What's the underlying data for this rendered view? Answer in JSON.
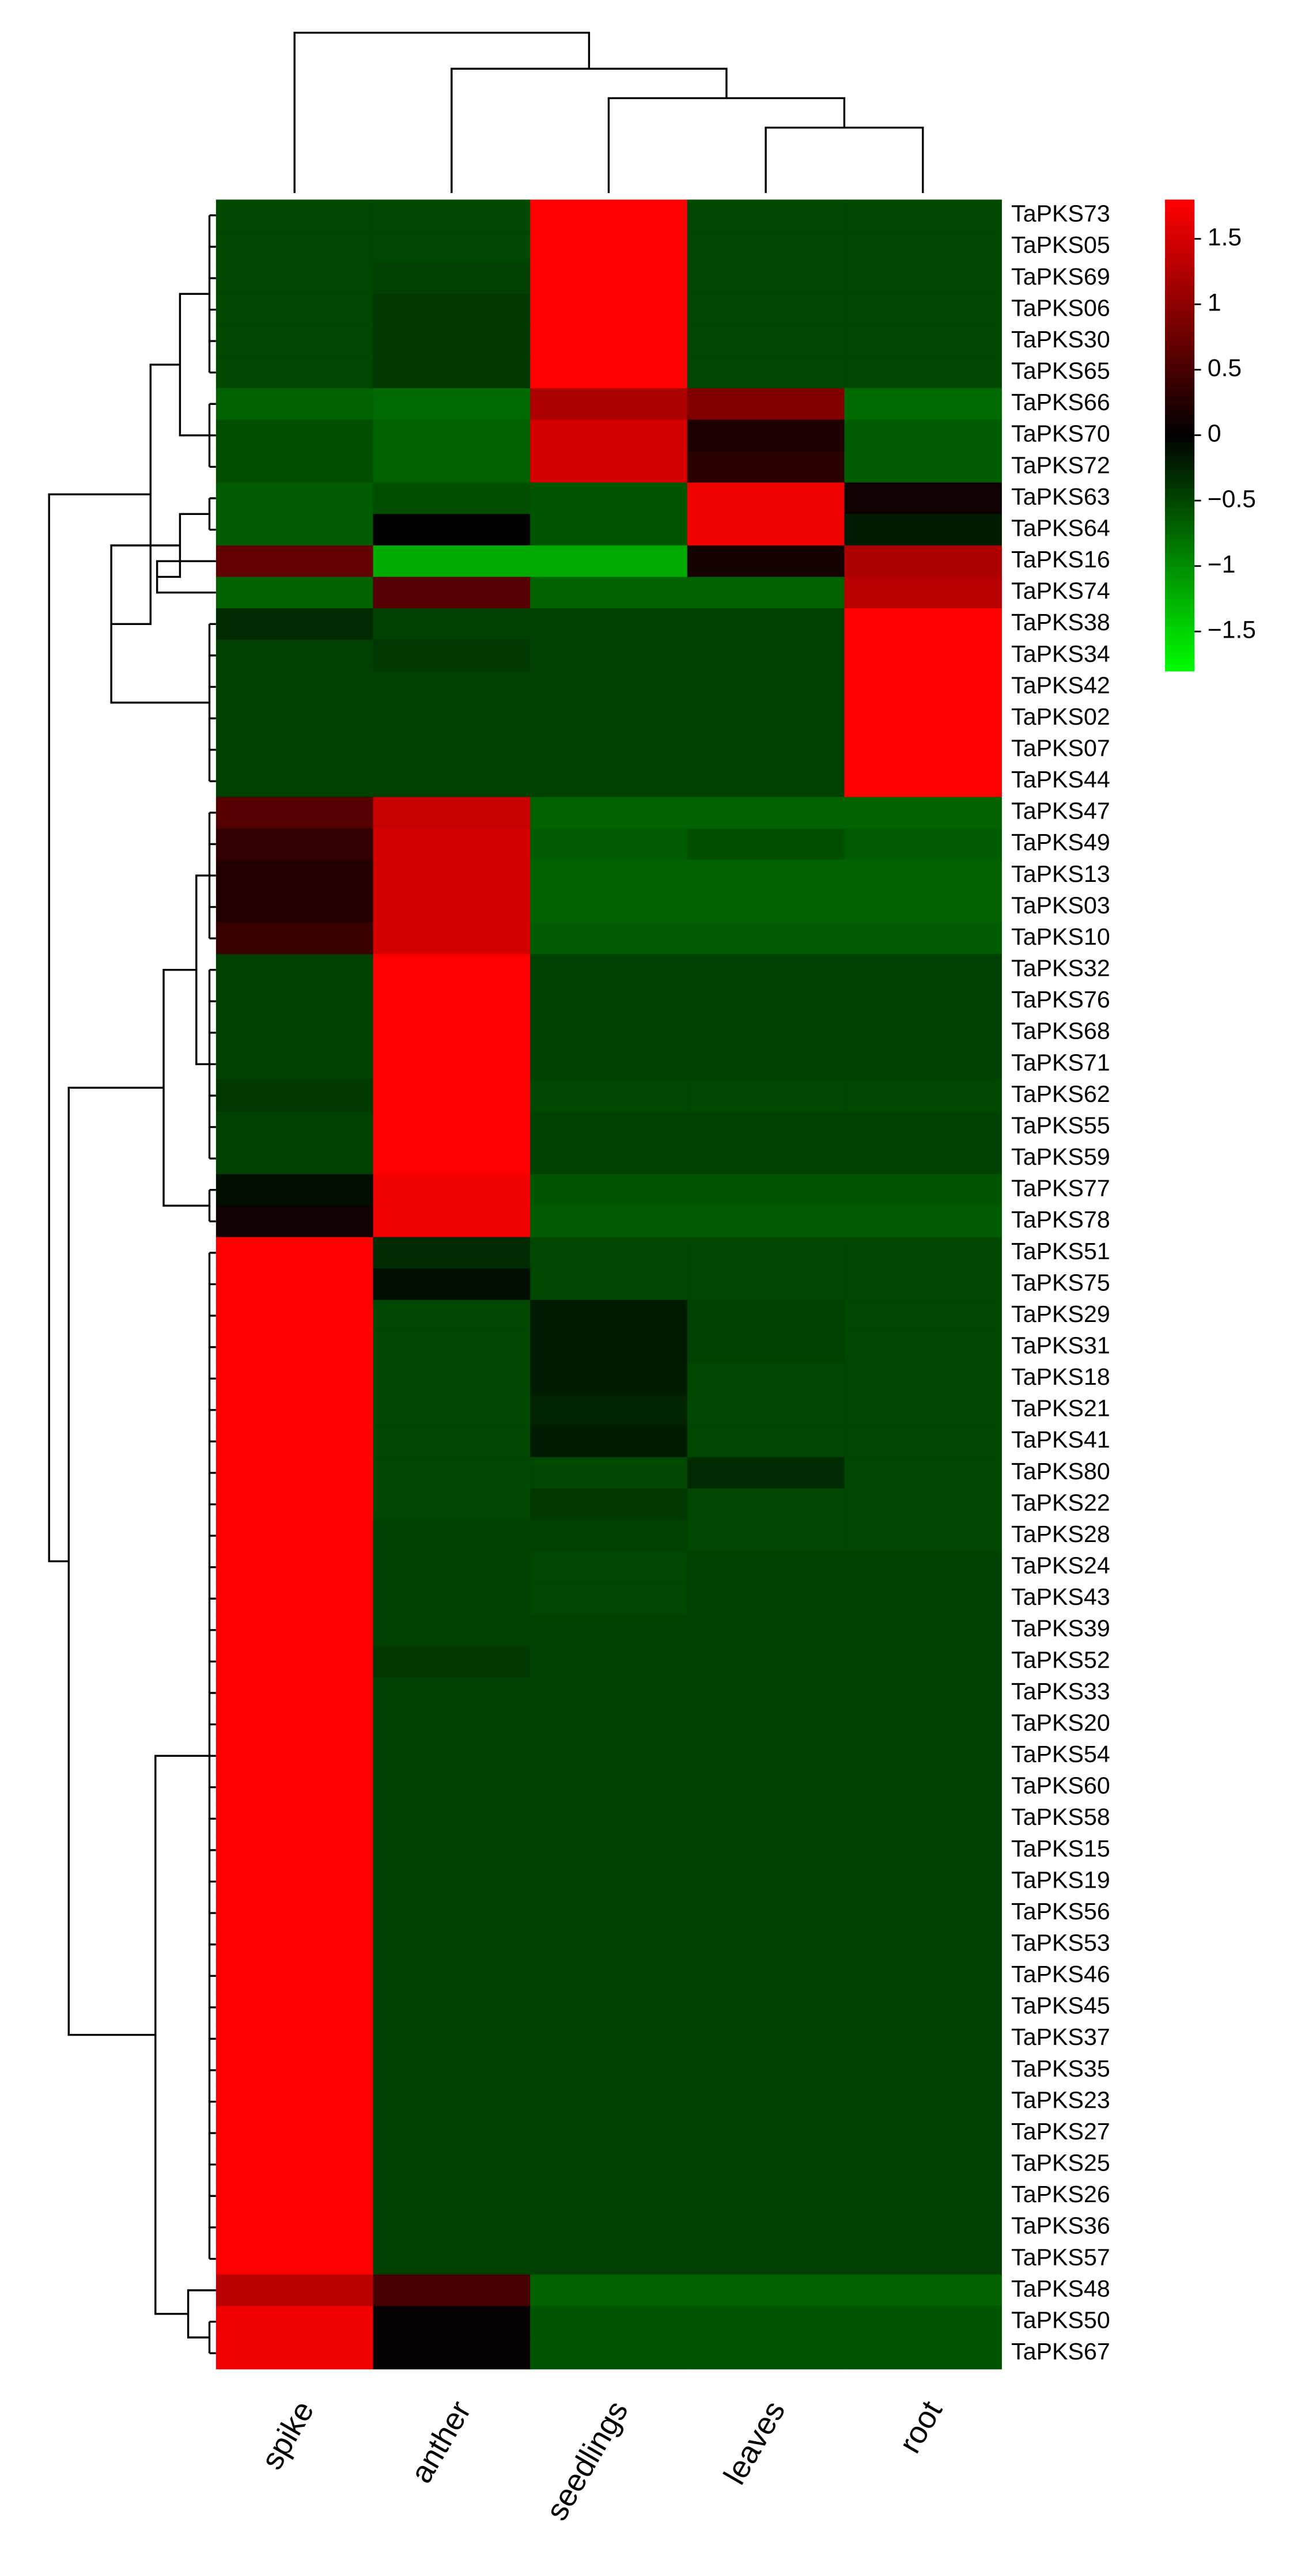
{
  "chart_data": {
    "type": "heatmap",
    "x_categories": [
      "spike",
      "anther",
      "seedlings",
      "leaves",
      "root"
    ],
    "y_categories": [
      "TaPKS73",
      "TaPKS05",
      "TaPKS69",
      "TaPKS06",
      "TaPKS30",
      "TaPKS65",
      "TaPKS66",
      "TaPKS70",
      "TaPKS72",
      "TaPKS63",
      "TaPKS64",
      "TaPKS16",
      "TaPKS74",
      "TaPKS38",
      "TaPKS34",
      "TaPKS42",
      "TaPKS02",
      "TaPKS07",
      "TaPKS44",
      "TaPKS47",
      "TaPKS49",
      "TaPKS13",
      "TaPKS03",
      "TaPKS10",
      "TaPKS32",
      "TaPKS76",
      "TaPKS68",
      "TaPKS71",
      "TaPKS62",
      "TaPKS55",
      "TaPKS59",
      "TaPKS77",
      "TaPKS78",
      "TaPKS51",
      "TaPKS75",
      "TaPKS29",
      "TaPKS31",
      "TaPKS18",
      "TaPKS21",
      "TaPKS41",
      "TaPKS80",
      "TaPKS22",
      "TaPKS28",
      "TaPKS24",
      "TaPKS43",
      "TaPKS39",
      "TaPKS52",
      "TaPKS33",
      "TaPKS20",
      "TaPKS54",
      "TaPKS60",
      "TaPKS58",
      "TaPKS15",
      "TaPKS19",
      "TaPKS56",
      "TaPKS53",
      "TaPKS46",
      "TaPKS45",
      "TaPKS37",
      "TaPKS35",
      "TaPKS23",
      "TaPKS27",
      "TaPKS25",
      "TaPKS26",
      "TaPKS36",
      "TaPKS57",
      "TaPKS48",
      "TaPKS50",
      "TaPKS67"
    ],
    "values": [
      [
        -0.5,
        -0.5,
        1.8,
        -0.5,
        -0.5
      ],
      [
        -0.5,
        -0.5,
        1.8,
        -0.5,
        -0.5
      ],
      [
        -0.5,
        -0.45,
        1.8,
        -0.5,
        -0.5
      ],
      [
        -0.5,
        -0.4,
        1.8,
        -0.5,
        -0.5
      ],
      [
        -0.5,
        -0.4,
        1.8,
        -0.5,
        -0.5
      ],
      [
        -0.5,
        -0.4,
        1.8,
        -0.5,
        -0.5
      ],
      [
        -0.7,
        -0.75,
        1.2,
        0.9,
        -0.75
      ],
      [
        -0.55,
        -0.7,
        1.5,
        0.2,
        -0.65
      ],
      [
        -0.55,
        -0.7,
        1.5,
        0.3,
        -0.65
      ],
      [
        -0.65,
        -0.55,
        -0.6,
        1.7,
        0.1
      ],
      [
        -0.65,
        0,
        -0.6,
        1.7,
        -0.2
      ],
      [
        0.7,
        -1.2,
        -1.2,
        0.15,
        1.2
      ],
      [
        -0.7,
        0.6,
        -0.7,
        -0.7,
        1.3
      ],
      [
        -0.3,
        -0.45,
        -0.45,
        -0.45,
        1.8
      ],
      [
        -0.45,
        -0.4,
        -0.45,
        -0.45,
        1.8
      ],
      [
        -0.45,
        -0.45,
        -0.45,
        -0.45,
        1.8
      ],
      [
        -0.45,
        -0.45,
        -0.45,
        -0.45,
        1.8
      ],
      [
        -0.45,
        -0.45,
        -0.45,
        -0.45,
        1.8
      ],
      [
        -0.45,
        -0.45,
        -0.45,
        -0.45,
        1.8
      ],
      [
        0.6,
        1.4,
        -0.7,
        -0.7,
        -0.7
      ],
      [
        0.35,
        1.5,
        -0.65,
        -0.55,
        -0.65
      ],
      [
        0.25,
        1.5,
        -0.7,
        -0.7,
        -0.7
      ],
      [
        0.25,
        1.5,
        -0.7,
        -0.7,
        -0.7
      ],
      [
        0.4,
        1.5,
        -0.65,
        -0.65,
        -0.65
      ],
      [
        -0.45,
        1.8,
        -0.45,
        -0.45,
        -0.45
      ],
      [
        -0.45,
        1.8,
        -0.45,
        -0.45,
        -0.45
      ],
      [
        -0.45,
        1.8,
        -0.45,
        -0.45,
        -0.45
      ],
      [
        -0.45,
        1.8,
        -0.45,
        -0.45,
        -0.45
      ],
      [
        -0.4,
        1.8,
        -0.5,
        -0.5,
        -0.5
      ],
      [
        -0.45,
        1.8,
        -0.45,
        -0.45,
        -0.45
      ],
      [
        -0.45,
        1.8,
        -0.45,
        -0.45,
        -0.45
      ],
      [
        -0.1,
        1.7,
        -0.6,
        -0.6,
        -0.6
      ],
      [
        0.1,
        1.7,
        -0.65,
        -0.65,
        -0.65
      ],
      [
        1.8,
        -0.3,
        -0.5,
        -0.5,
        -0.5
      ],
      [
        1.8,
        -0.1,
        -0.5,
        -0.5,
        -0.5
      ],
      [
        1.8,
        -0.5,
        -0.2,
        -0.45,
        -0.5
      ],
      [
        1.8,
        -0.5,
        -0.2,
        -0.45,
        -0.5
      ],
      [
        1.8,
        -0.5,
        -0.2,
        -0.5,
        -0.5
      ],
      [
        1.8,
        -0.5,
        -0.25,
        -0.5,
        -0.5
      ],
      [
        1.8,
        -0.5,
        -0.2,
        -0.5,
        -0.5
      ],
      [
        1.8,
        -0.5,
        -0.5,
        -0.3,
        -0.5
      ],
      [
        1.8,
        -0.5,
        -0.4,
        -0.5,
        -0.5
      ],
      [
        1.8,
        -0.45,
        -0.45,
        -0.5,
        -0.5
      ],
      [
        1.8,
        -0.45,
        -0.5,
        -0.45,
        -0.45
      ],
      [
        1.8,
        -0.45,
        -0.5,
        -0.45,
        -0.45
      ],
      [
        1.8,
        -0.45,
        -0.45,
        -0.45,
        -0.45
      ],
      [
        1.8,
        -0.4,
        -0.45,
        -0.45,
        -0.45
      ],
      [
        1.8,
        -0.45,
        -0.45,
        -0.45,
        -0.45
      ],
      [
        1.8,
        -0.45,
        -0.45,
        -0.45,
        -0.45
      ],
      [
        1.8,
        -0.45,
        -0.45,
        -0.45,
        -0.45
      ],
      [
        1.8,
        -0.45,
        -0.45,
        -0.45,
        -0.45
      ],
      [
        1.8,
        -0.45,
        -0.45,
        -0.45,
        -0.45
      ],
      [
        1.8,
        -0.45,
        -0.45,
        -0.45,
        -0.45
      ],
      [
        1.8,
        -0.45,
        -0.45,
        -0.45,
        -0.45
      ],
      [
        1.8,
        -0.45,
        -0.45,
        -0.45,
        -0.45
      ],
      [
        1.8,
        -0.45,
        -0.45,
        -0.45,
        -0.45
      ],
      [
        1.8,
        -0.45,
        -0.45,
        -0.45,
        -0.45
      ],
      [
        1.8,
        -0.45,
        -0.45,
        -0.45,
        -0.45
      ],
      [
        1.8,
        -0.45,
        -0.45,
        -0.45,
        -0.45
      ],
      [
        1.8,
        -0.45,
        -0.45,
        -0.45,
        -0.45
      ],
      [
        1.8,
        -0.45,
        -0.45,
        -0.45,
        -0.45
      ],
      [
        1.8,
        -0.45,
        -0.45,
        -0.45,
        -0.45
      ],
      [
        1.8,
        -0.45,
        -0.45,
        -0.45,
        -0.45
      ],
      [
        1.8,
        -0.45,
        -0.45,
        -0.45,
        -0.45
      ],
      [
        1.8,
        -0.45,
        -0.45,
        -0.45,
        -0.45
      ],
      [
        1.8,
        -0.45,
        -0.45,
        -0.45,
        -0.45
      ],
      [
        1.3,
        0.5,
        -0.7,
        -0.7,
        -0.7
      ],
      [
        1.7,
        0.05,
        -0.6,
        -0.6,
        -0.6
      ],
      [
        1.7,
        0.05,
        -0.6,
        -0.6,
        -0.6
      ]
    ],
    "colors": {
      "low": "#00ff00",
      "mid": "#000000",
      "high": "#ff0000"
    },
    "colorbar_lim": [
      -1.8,
      1.8
    ],
    "colorbar_ticks": [
      {
        "value": -1.5,
        "label": "−1.5"
      },
      {
        "value": -1,
        "label": "−1"
      },
      {
        "value": -0.5,
        "label": "−0.5"
      },
      0,
      0.5,
      1,
      1.5
    ]
  }
}
